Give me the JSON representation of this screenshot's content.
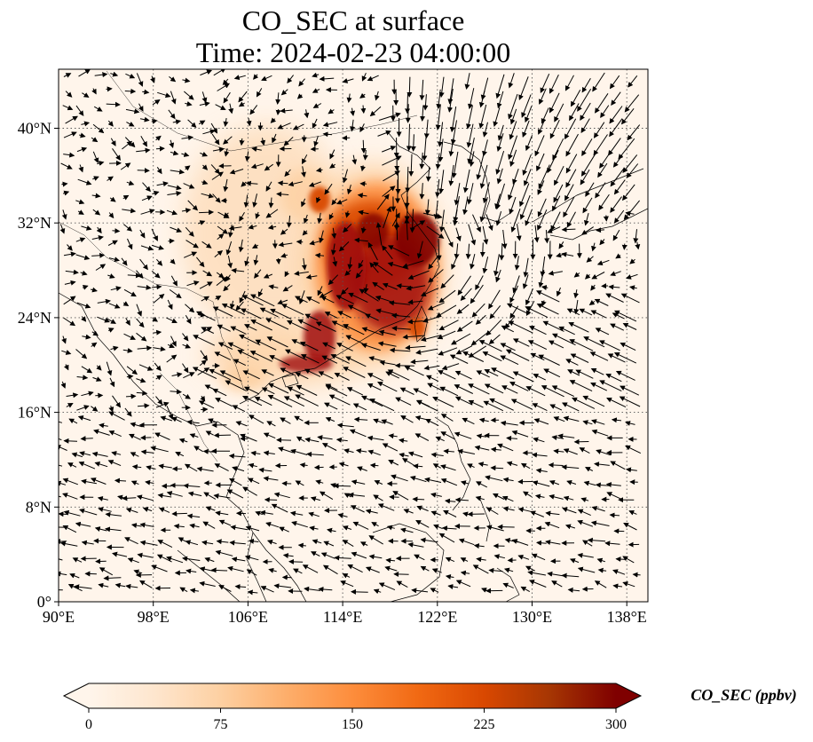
{
  "title": {
    "line1": "CO_SEC at surface",
    "line2": "Time: 2024-02-23 04:00:00"
  },
  "map": {
    "lon_ticks": [
      "90°E",
      "98°E",
      "106°E",
      "114°E",
      "122°E",
      "130°E",
      "138°E"
    ],
    "lat_ticks": [
      "0°",
      "8°N",
      "16°N",
      "24°N",
      "32°N",
      "40°N"
    ],
    "gridlines": true,
    "field_colors": {
      "low": "#fff5eb",
      "mid_low": "#fdd0a2",
      "mid": "#fd8d3c",
      "mid_high": "#d94801",
      "high": "#a01010",
      "max": "#7f0000"
    },
    "coastline_color": "#000000",
    "vector_color": "#000000"
  },
  "colorbar": {
    "label": "CO_SEC (ppbv)",
    "ticks": [
      "0",
      "75",
      "150",
      "225",
      "300"
    ],
    "min": 0,
    "max": 300,
    "extend": "both",
    "colors": [
      "#fff5eb",
      "#fee6ce",
      "#fdd0a2",
      "#fdae6b",
      "#fd8d3c",
      "#f16913",
      "#d94801",
      "#a63603",
      "#7f0000"
    ]
  }
}
